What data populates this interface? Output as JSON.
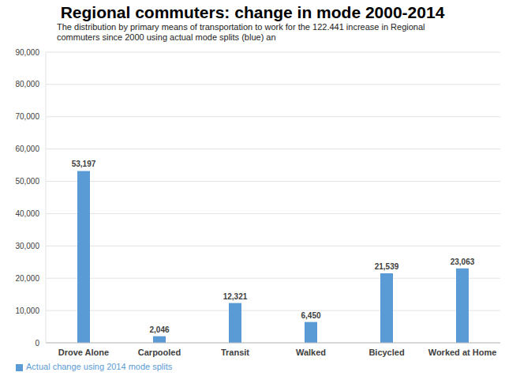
{
  "chart_data": {
    "type": "bar",
    "title": "Regional commuters: change in mode 2000-2014",
    "subtitle": "The distribution by primary means of transportation to work for the 122.441 increase in Regional commuters since 2000 using actual mode splits (blue) an",
    "categories": [
      "Drove Alone",
      "Carpooled",
      "Transit",
      "Walked",
      "Bicycled",
      "Worked at Home"
    ],
    "series": [
      {
        "name": "Actual change using 2014 mode splits",
        "color": "#5b9bd5",
        "values": [
          53197,
          2046,
          12321,
          6450,
          21539,
          23063
        ],
        "value_labels": [
          "53,197",
          "2,046",
          "12,321",
          "6,450",
          "21,539",
          "23,063"
        ]
      }
    ],
    "ylim": [
      0,
      90000
    ],
    "yticks": [
      0,
      {
        "value": 10000,
        "label": "10,000"
      },
      {
        "value": 20000,
        "label": "20,000"
      },
      {
        "value": 30000,
        "label": "30,000"
      },
      {
        "value": 40000,
        "label": "40,000"
      },
      {
        "value": 50000,
        "label": "50,000"
      },
      {
        "value": 60000,
        "label": "60,000"
      },
      {
        "value": 70000,
        "label": "70,000"
      },
      {
        "value": 80000,
        "label": "80,000"
      },
      {
        "value": 90000,
        "label": "90,000"
      }
    ],
    "grid": true,
    "legend": "bottom-left",
    "data_labels": true
  }
}
